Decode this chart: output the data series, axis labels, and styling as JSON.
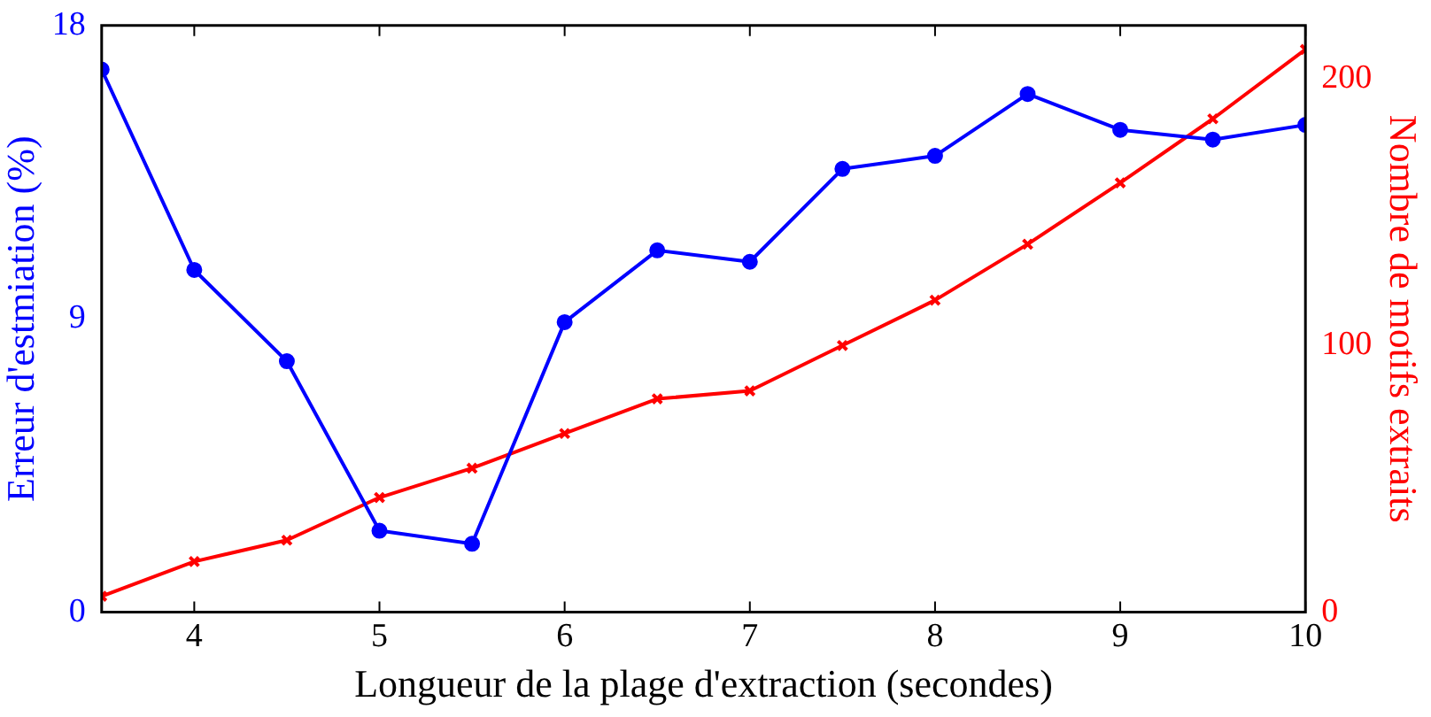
{
  "chart_data": {
    "type": "line",
    "xlabel": "Longueur de la plage d'extraction (secondes)",
    "ylabel": "Erreur d'estmiation (%)",
    "y2label": "Nombre de motifs extraits",
    "x": [
      3.5,
      4,
      4.5,
      5,
      5.5,
      6,
      6.5,
      7,
      7.5,
      8,
      8.5,
      9,
      9.5,
      10
    ],
    "series": [
      {
        "color": "#0000ff",
        "marker": "circle",
        "values": [
          16.65,
          10.5,
          7.7,
          2.5,
          2.1,
          8.9,
          11.1,
          10.75,
          13.6,
          14,
          15.9,
          14.8,
          14.5,
          14.95
        ]
      },
      {
        "color": "#ff0000",
        "marker": "cross",
        "axis": "y2",
        "values": [
          6,
          19,
          27,
          43,
          54,
          67,
          80,
          83,
          100,
          117,
          138,
          161,
          185,
          211
        ]
      }
    ],
    "xlim": [
      3.5,
      10
    ],
    "xticks": [
      4,
      5,
      6,
      7,
      8,
      9,
      10
    ],
    "ylim": [
      0,
      18
    ],
    "yticks": [
      0,
      9,
      18
    ],
    "y2lim": [
      0,
      220
    ],
    "y2ticks": [
      0,
      100,
      200
    ],
    "grid": false,
    "legend": false
  }
}
